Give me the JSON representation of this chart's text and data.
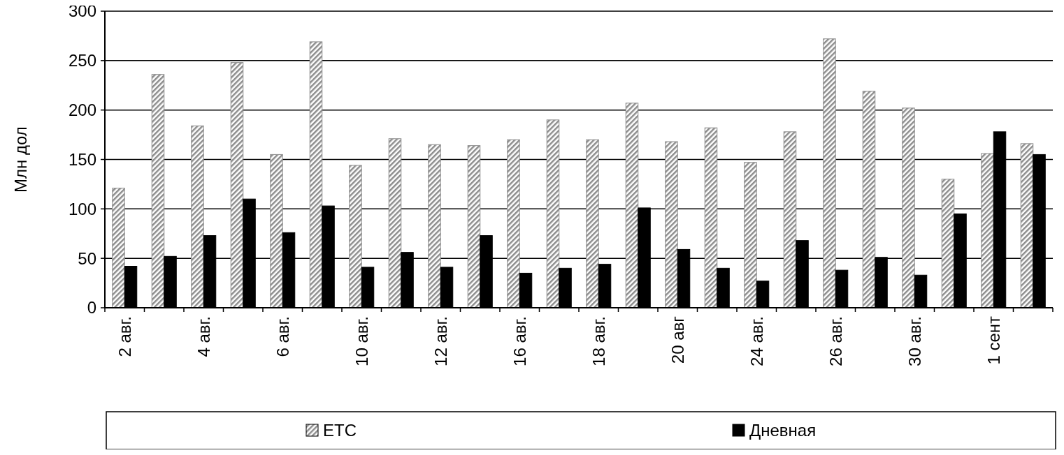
{
  "chart_data": {
    "type": "bar",
    "ylabel": "Млн  дол",
    "categories": [
      "2 авг.",
      null,
      "4 авг.",
      null,
      "6 авг.",
      null,
      "10 авг.",
      null,
      "12 авг.",
      null,
      "16 авг.",
      null,
      "18 авг.",
      null,
      "20 авг",
      null,
      "24 авг.",
      null,
      "26 авг.",
      null,
      "30 авг.",
      null,
      "1 сент",
      null
    ],
    "series": [
      {
        "name": "ETC",
        "color": "#8c8c8c",
        "values": [
          121,
          236,
          184,
          248,
          155,
          269,
          144,
          171,
          165,
          164,
          170,
          190,
          170,
          207,
          168,
          182,
          147,
          178,
          272,
          219,
          202,
          130,
          156,
          166
        ]
      },
      {
        "name": "Дневная",
        "color": "#000000",
        "values": [
          42,
          52,
          73,
          110,
          76,
          103,
          41,
          56,
          41,
          73,
          35,
          40,
          44,
          101,
          59,
          40,
          27,
          68,
          38,
          51,
          33,
          95,
          178,
          155
        ]
      }
    ],
    "ylim": [
      0,
      300
    ],
    "yticks": [
      0,
      50,
      100,
      150,
      200,
      250,
      300
    ],
    "grid": "y",
    "legend": "bottom"
  }
}
